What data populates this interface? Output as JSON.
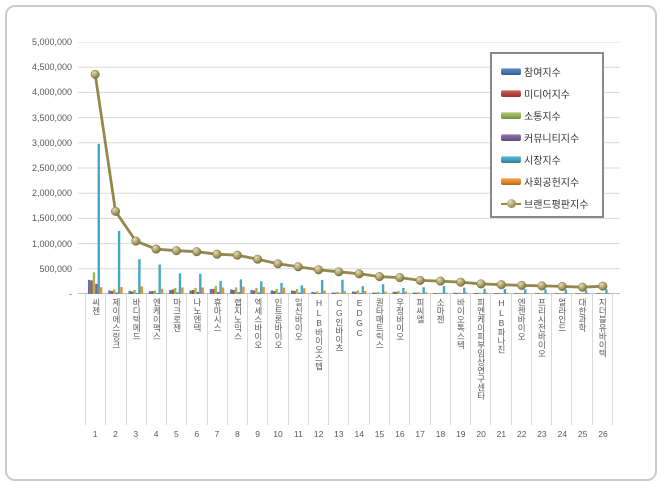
{
  "colors": {
    "grid": "#d9d9d9",
    "axis": "#bfbfbf",
    "tick_text": "#595959",
    "legend_border": "#898989",
    "frame_border": "#cbcbcb",
    "line": "#94894c"
  },
  "chart_data": {
    "type": "bar",
    "title": "",
    "xlabel": "",
    "ylabel": "",
    "grid": true,
    "legend_position": "top-right",
    "y_axis": {
      "min": 0,
      "max": 5000000,
      "step": 500000,
      "tick_labels": [
        "5,000,000",
        "4,500,000",
        "4,000,000",
        "3,500,000",
        "3,000,000",
        "2,500,000",
        "2,000,000",
        "1,500,000",
        "1,000,000",
        "500,000",
        "-"
      ]
    },
    "categories": [
      "씨젠",
      "제이에스링크",
      "바디텍메드",
      "엔케이맥스",
      "마크로젠",
      "나노엔텍",
      "휴마시스",
      "랩지노믹스",
      "엑세스바이오",
      "인트론바이오",
      "일신바이오",
      "HLB바이오스텝",
      "CG인바이츠",
      "EDGC",
      "퀀타매트릭스",
      "우정바이오",
      "피씨엘",
      "소마젠",
      "바이오톡스텍",
      "피엔케이피부임상연구센타",
      "HLB파나진",
      "엔젠바이오",
      "프리시전바이오",
      "얼라인드",
      "대한과학",
      "지더블유바이텍"
    ],
    "rank_labels": [
      "1",
      "2",
      "3",
      "4",
      "5",
      "6",
      "7",
      "8",
      "9",
      "10",
      "11",
      "12",
      "13",
      "14",
      "15",
      "16",
      "17",
      "18",
      "19",
      "20",
      "21",
      "22",
      "23",
      "24",
      "25",
      "26"
    ],
    "series": [
      {
        "name": "참여지수",
        "color": "#4a7ebb",
        "values": [
          280000,
          70000,
          60000,
          55000,
          80000,
          70000,
          100000,
          90000,
          80000,
          70000,
          70000,
          40000,
          30000,
          50000,
          30000,
          45000,
          30000,
          20000,
          25000,
          20000,
          18000,
          16000,
          15000,
          14000,
          13000,
          14000
        ]
      },
      {
        "name": "미디어지수",
        "color": "#bf4b47",
        "values": [
          270000,
          60000,
          50000,
          60000,
          90000,
          80000,
          100000,
          80000,
          70000,
          60000,
          60000,
          30000,
          25000,
          45000,
          25000,
          40000,
          25000,
          15000,
          20000,
          18000,
          16000,
          14000,
          13000,
          12000,
          11000,
          12000
        ]
      },
      {
        "name": "소통지수",
        "color": "#9aba58",
        "values": [
          430000,
          90000,
          80000,
          70000,
          120000,
          120000,
          160000,
          130000,
          120000,
          100000,
          100000,
          50000,
          40000,
          70000,
          40000,
          60000,
          35000,
          25000,
          30000,
          25000,
          22000,
          20000,
          18000,
          17000,
          15000,
          16000
        ]
      },
      {
        "name": "커뮤니티지수",
        "color": "#8064a2",
        "values": [
          200000,
          30000,
          20000,
          15000,
          30000,
          40000,
          40000,
          35000,
          30000,
          25000,
          25000,
          15000,
          10000,
          20000,
          10000,
          15000,
          10000,
          8000,
          8000,
          7000,
          6000,
          5000,
          5000,
          4000,
          4000,
          4000
        ]
      },
      {
        "name": "시장지수",
        "color": "#45a9c5",
        "values": [
          2980000,
          1250000,
          690000,
          585000,
          410000,
          400000,
          260000,
          290000,
          250000,
          220000,
          170000,
          280000,
          280000,
          155000,
          195000,
          120000,
          135000,
          160000,
          125000,
          105000,
          100000,
          95000,
          90000,
          85000,
          75000,
          90000
        ]
      },
      {
        "name": "사회공헌지수",
        "color": "#ee8f2d",
        "values": [
          135000,
          140000,
          150000,
          105000,
          130000,
          130000,
          130000,
          145000,
          140000,
          125000,
          115000,
          65000,
          55000,
          60000,
          45000,
          45000,
          35000,
          27000,
          27000,
          25000,
          23000,
          20000,
          19000,
          18000,
          17000,
          19000
        ]
      }
    ],
    "line_series": {
      "name": "브랜드평판지수",
      "color": "#94894c",
      "values": [
        4360000,
        1640000,
        1050000,
        890000,
        860000,
        840000,
        790000,
        770000,
        690000,
        600000,
        540000,
        480000,
        440000,
        400000,
        345000,
        325000,
        270000,
        255000,
        235000,
        200000,
        185000,
        170000,
        160000,
        150000,
        135000,
        155000
      ]
    }
  }
}
